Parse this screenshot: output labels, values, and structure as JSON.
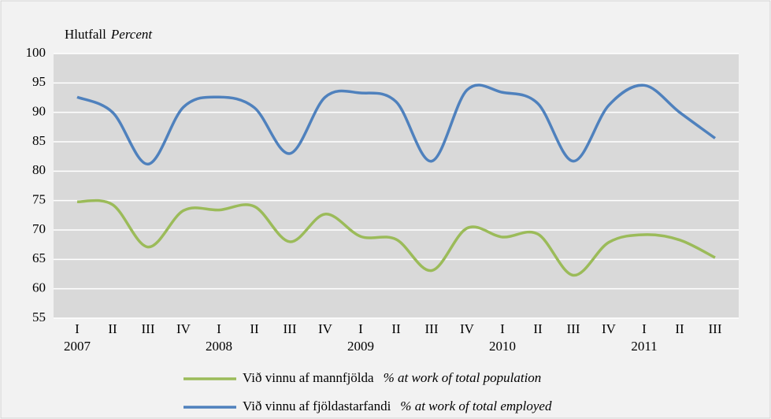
{
  "chart_data": {
    "type": "line",
    "ylabel": "Hlutfall",
    "ylabel_en": "Percent",
    "categories": [
      "I",
      "II",
      "III",
      "IV",
      "I",
      "II",
      "III",
      "IV",
      "I",
      "II",
      "III",
      "IV",
      "I",
      "II",
      "III",
      "IV",
      "I",
      "II",
      "III"
    ],
    "year_labels": [
      "2007",
      null,
      null,
      null,
      "2008",
      null,
      null,
      null,
      "2009",
      null,
      null,
      null,
      "2010",
      null,
      null,
      null,
      "2011",
      null,
      null
    ],
    "series": [
      {
        "name": "Við vinnu af mannfjölda",
        "name_en": "% at work of total population",
        "color": "#9bbb59",
        "values": [
          74.8,
          74.3,
          67.1,
          73.3,
          73.4,
          74.0,
          68.0,
          72.7,
          68.9,
          68.4,
          63.1,
          70.3,
          68.8,
          69.3,
          62.3,
          67.9,
          69.2,
          68.3,
          65.3
        ]
      },
      {
        "name": "Við vinnu af fjöldastarfandi",
        "name_en": "% at work of total employed",
        "color": "#4f81bd",
        "values": [
          92.6,
          90.0,
          81.2,
          90.9,
          92.6,
          90.8,
          83.0,
          92.6,
          93.3,
          91.8,
          81.7,
          93.8,
          93.4,
          91.5,
          81.7,
          91.2,
          94.6,
          90.0,
          85.6
        ]
      }
    ],
    "ylim": [
      55,
      100
    ],
    "yticks": [
      55,
      60,
      65,
      70,
      75,
      80,
      85,
      90,
      95,
      100
    ],
    "grid": true,
    "smooth": true
  }
}
